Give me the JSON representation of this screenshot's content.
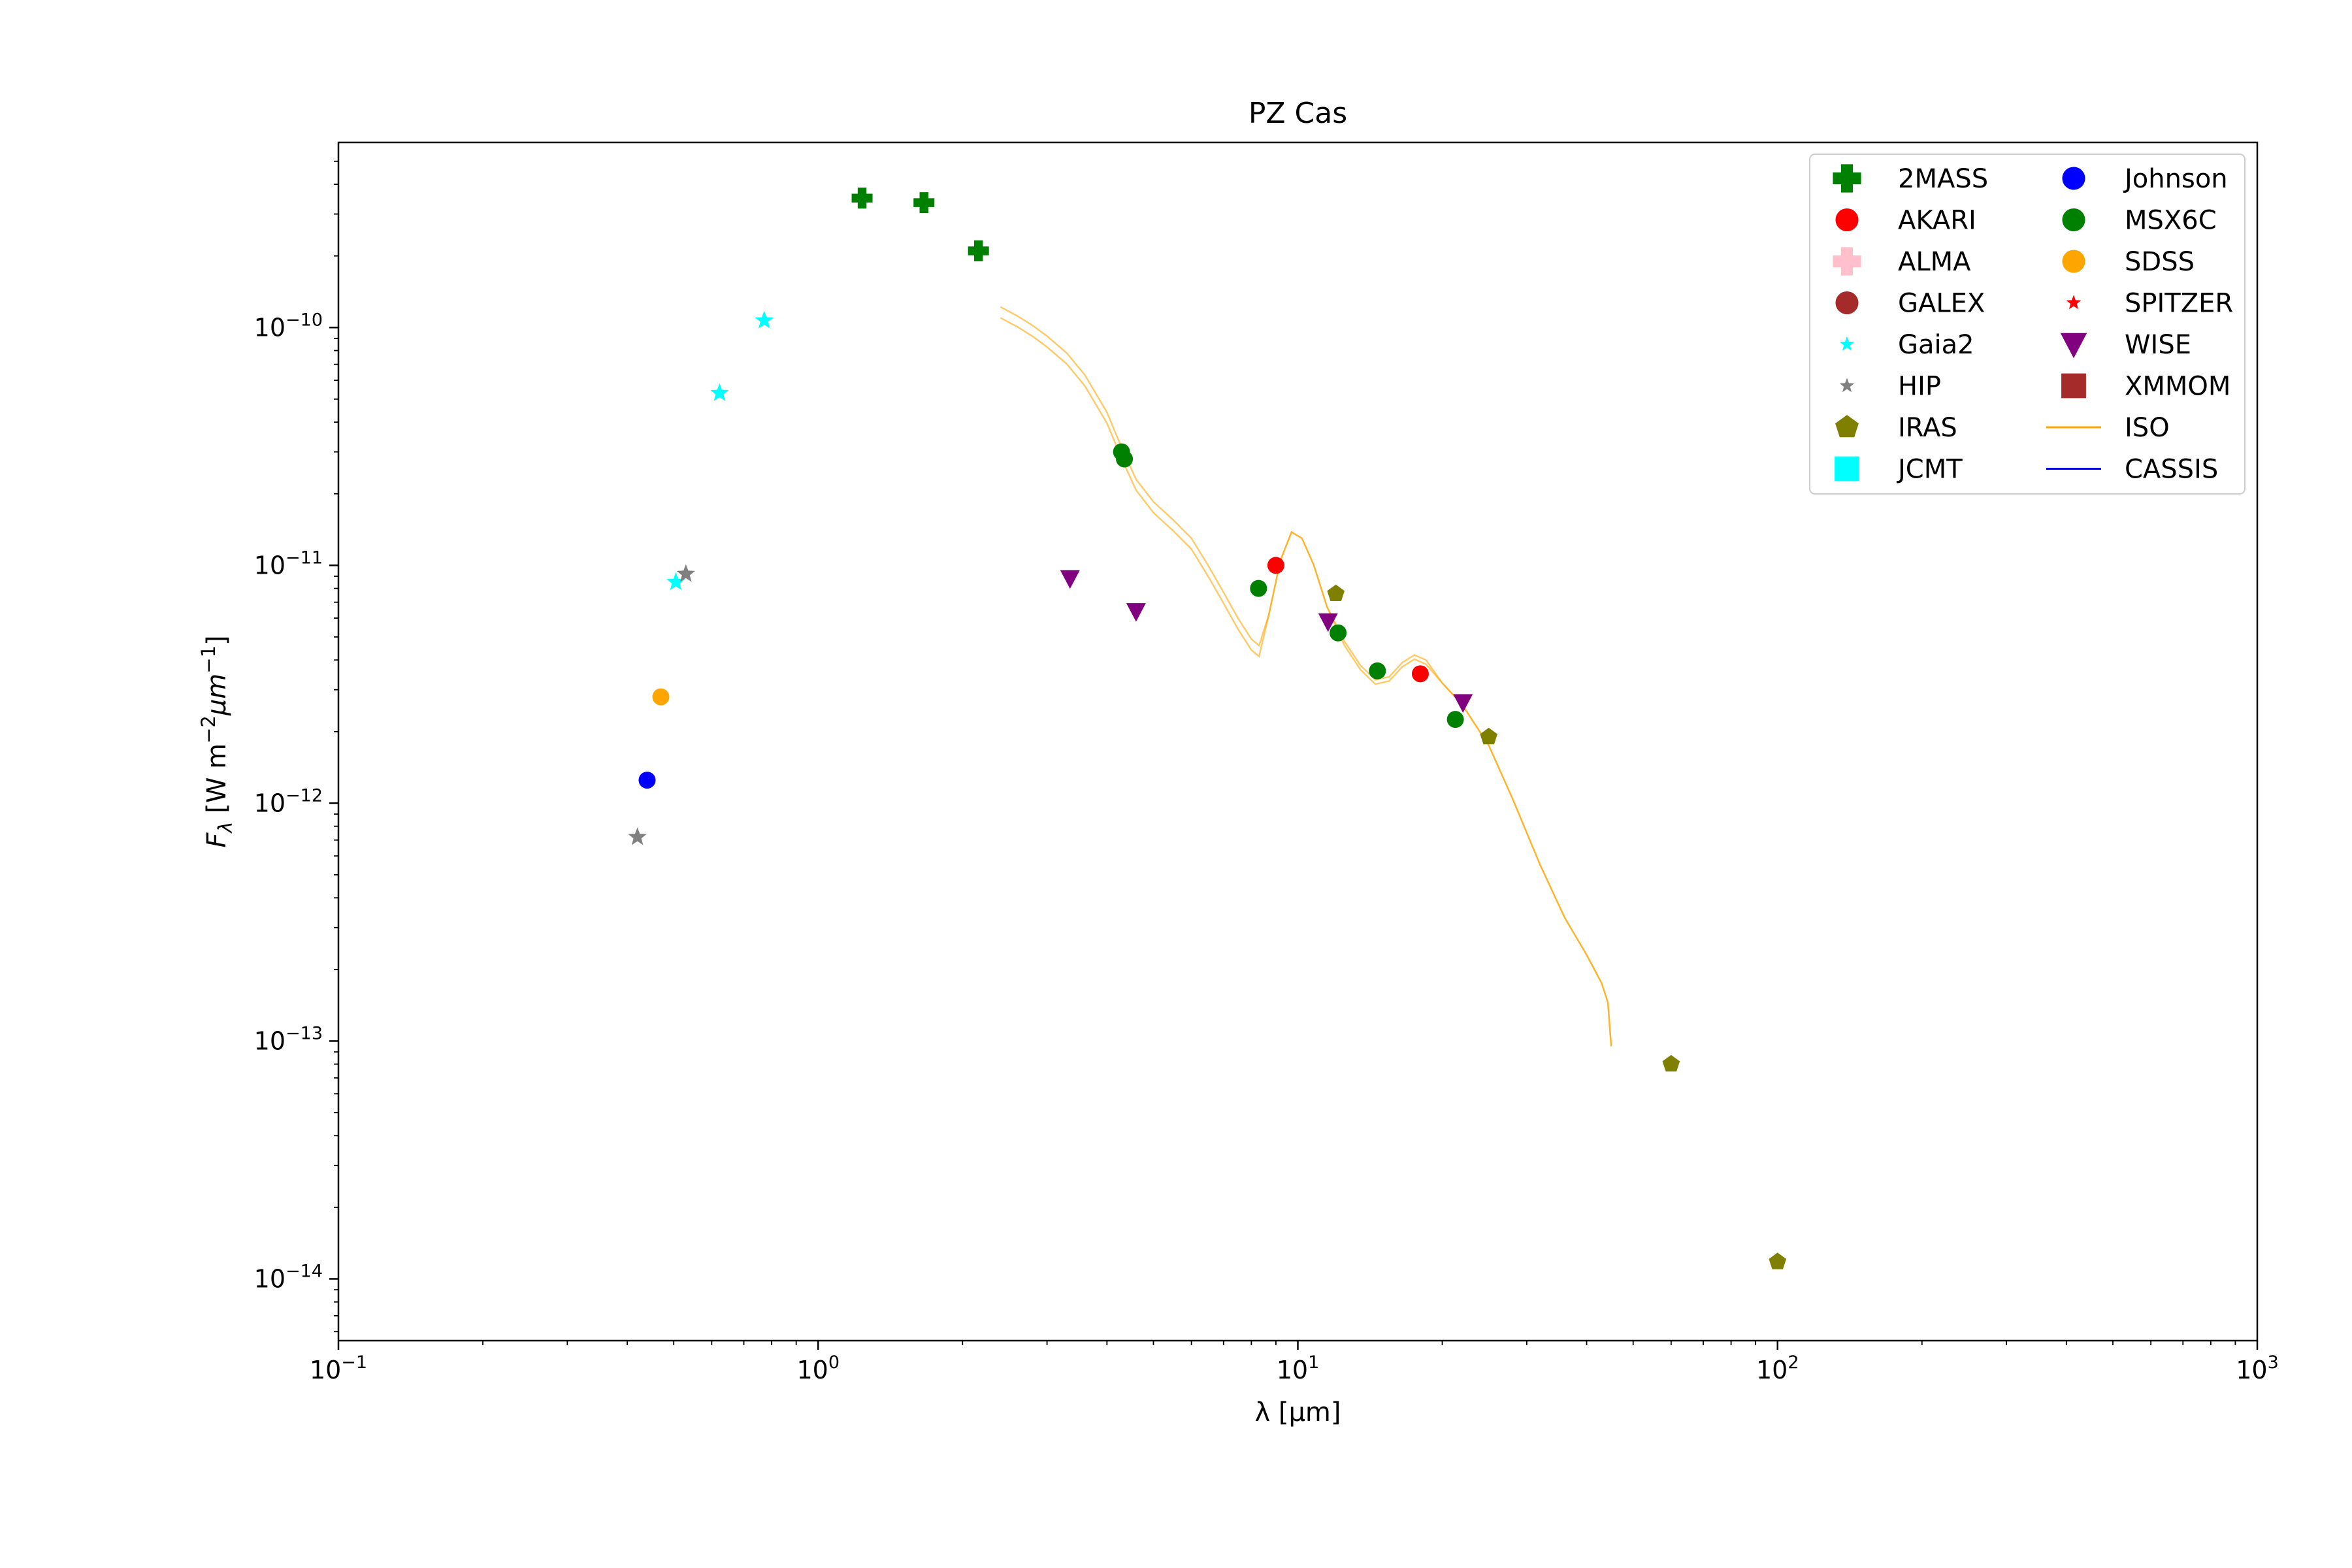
{
  "chart_data": {
    "type": "scatter",
    "title": "PZ Cas",
    "xlabel": "λ [μm]",
    "ylabel": "F_λ [W m^-2 μm^-1]",
    "xscale": "log",
    "yscale": "log",
    "xlim": [
      0.1,
      1000
    ],
    "ylim": [
      5.5e-15,
      6e-10
    ],
    "x_ticks": [
      0.1,
      1,
      10,
      100,
      1000
    ],
    "x_tick_labels": [
      "10^-1",
      "10^0",
      "10^1",
      "10^2",
      "10^3"
    ],
    "y_ticks": [
      1e-14,
      1e-13,
      1e-12,
      1e-11,
      1e-10
    ],
    "y_tick_labels": [
      "10^-14",
      "10^-13",
      "10^-12",
      "10^-11",
      "10^-10"
    ],
    "grid": false,
    "legend_position": "upper right",
    "series": [
      {
        "name": "2MASS",
        "marker": "plus",
        "color": "#008000",
        "points": [
          [
            1.235,
            3.5e-10
          ],
          [
            1.662,
            3.35e-10
          ],
          [
            2.159,
            2.1e-10
          ]
        ]
      },
      {
        "name": "AKARI",
        "marker": "circle",
        "color": "#ff0000",
        "points": [
          [
            9.0,
            1e-11
          ],
          [
            18.0,
            3.5e-12
          ]
        ]
      },
      {
        "name": "ALMA",
        "marker": "plus",
        "color": "#ffc0cb",
        "points": []
      },
      {
        "name": "GALEX",
        "marker": "circle",
        "color": "#a52a2a",
        "points": []
      },
      {
        "name": "Gaia2",
        "marker": "star",
        "color": "#00ffff",
        "points": [
          [
            0.505,
            8.5e-12
          ],
          [
            0.623,
            5.3e-11
          ],
          [
            0.772,
            1.07e-10
          ]
        ]
      },
      {
        "name": "HIP",
        "marker": "star",
        "color": "#808080",
        "points": [
          [
            0.42,
            7.2e-13
          ],
          [
            0.53,
            9.2e-12
          ]
        ]
      },
      {
        "name": "IRAS",
        "marker": "pentagon",
        "color": "#808000",
        "points": [
          [
            12.0,
            7.6e-12
          ],
          [
            25.0,
            1.9e-12
          ],
          [
            60.0,
            8e-14
          ],
          [
            100.0,
            1.18e-14
          ]
        ]
      },
      {
        "name": "JCMT",
        "marker": "square",
        "color": "#00ffff",
        "points": []
      },
      {
        "name": "Johnson",
        "marker": "circle",
        "color": "#0000ff",
        "points": [
          [
            0.44,
            1.25e-12
          ]
        ]
      },
      {
        "name": "MSX6C",
        "marker": "circle",
        "color": "#008000",
        "points": [
          [
            4.29,
            3e-11
          ],
          [
            4.35,
            2.8e-11
          ],
          [
            8.28,
            8e-12
          ],
          [
            12.13,
            5.2e-12
          ],
          [
            14.65,
            3.6e-12
          ],
          [
            21.3,
            2.25e-12
          ]
        ]
      },
      {
        "name": "SDSS",
        "marker": "circle",
        "color": "#ffa500",
        "points": [
          [
            0.47,
            2.8e-12
          ]
        ]
      },
      {
        "name": "SPITZER",
        "marker": "star",
        "color": "#ff0000",
        "points": []
      },
      {
        "name": "WISE",
        "marker": "triangle_down",
        "color": "#800080",
        "points": [
          [
            3.35,
            8.8e-12
          ],
          [
            4.6,
            6.4e-12
          ],
          [
            11.56,
            5.8e-12
          ],
          [
            22.09,
            2.65e-12
          ]
        ]
      },
      {
        "name": "XMMOM",
        "marker": "square",
        "color": "#a52a2a",
        "points": []
      },
      {
        "name": "ISO",
        "marker": "line",
        "color": "#ffa500",
        "points": [
          [
            2.4,
            1.22e-10
          ],
          [
            2.6,
            1.12e-10
          ],
          [
            2.8,
            1.02e-10
          ],
          [
            3.0,
            9.2e-11
          ],
          [
            3.3,
            7.8e-11
          ],
          [
            3.6,
            6.3e-11
          ],
          [
            4.0,
            4.4e-11
          ],
          [
            4.3,
            3.1e-11
          ],
          [
            4.6,
            2.3e-11
          ],
          [
            5.0,
            1.85e-11
          ],
          [
            5.5,
            1.55e-11
          ],
          [
            6.0,
            1.3e-11
          ],
          [
            6.5,
            1e-11
          ],
          [
            7.0,
            7.7e-12
          ],
          [
            7.5,
            6e-12
          ],
          [
            8.0,
            4.9e-12
          ],
          [
            8.3,
            4.6e-12
          ],
          [
            8.7,
            6.2e-12
          ],
          [
            9.2,
            1.05e-11
          ],
          [
            9.7,
            1.38e-11
          ],
          [
            10.2,
            1.3e-11
          ],
          [
            10.8,
            1e-11
          ],
          [
            11.5,
            6.7e-12
          ],
          [
            12.5,
            4.8e-12
          ],
          [
            13.5,
            3.8e-12
          ],
          [
            14.5,
            3.3e-12
          ],
          [
            15.5,
            3.4e-12
          ],
          [
            16.5,
            3.9e-12
          ],
          [
            17.5,
            4.2e-12
          ],
          [
            18.5,
            4e-12
          ],
          [
            20.0,
            3.2e-12
          ],
          [
            22.0,
            2.6e-12
          ],
          [
            25.0,
            1.75e-12
          ],
          [
            28.0,
            1.05e-12
          ],
          [
            32.0,
            5.5e-13
          ],
          [
            36.0,
            3.3e-13
          ],
          [
            40.0,
            2.3e-13
          ],
          [
            43.0,
            1.75e-13
          ],
          [
            44.3,
            1.45e-13
          ],
          [
            45.0,
            9.5e-14
          ]
        ]
      },
      {
        "name": "CASSIS",
        "marker": "line",
        "color": "#0000cc",
        "points": []
      }
    ]
  }
}
